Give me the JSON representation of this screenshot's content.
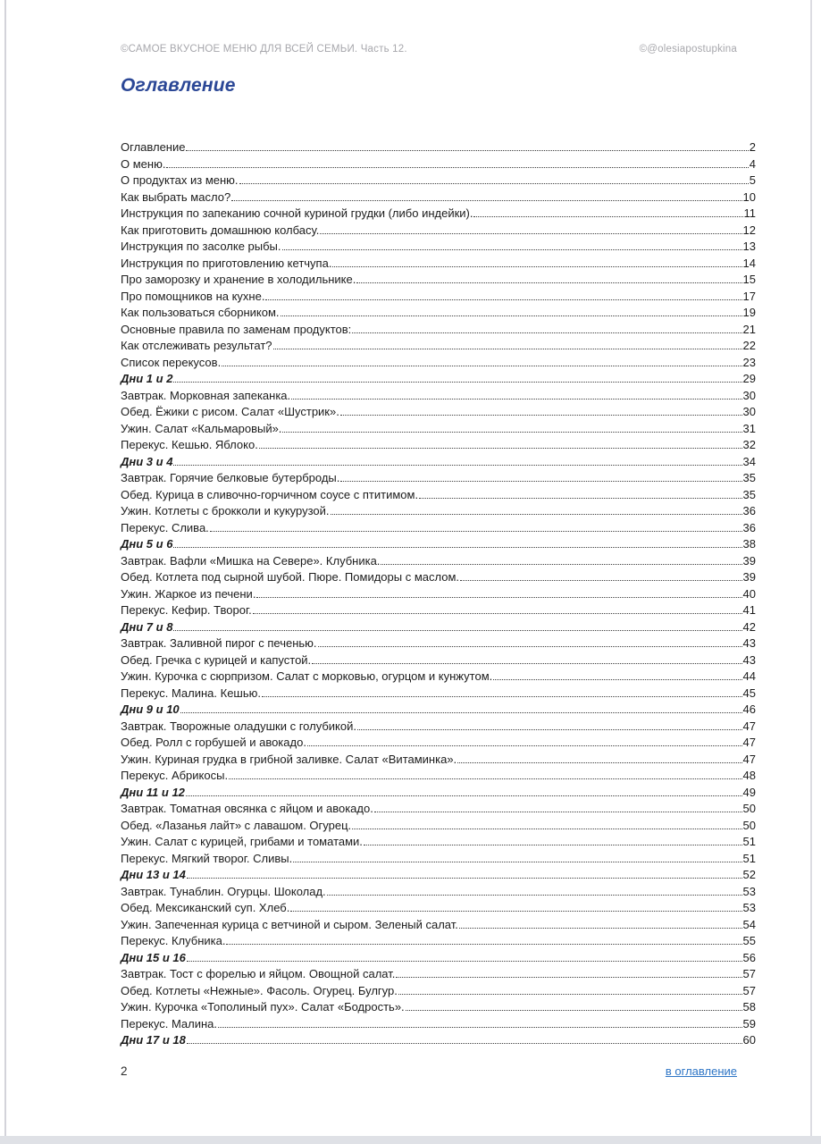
{
  "header": {
    "left": "©САМОЕ ВКУСНОЕ МЕНЮ ДЛЯ ВСЕЙ СЕМЬИ. Часть 12.",
    "right": "©@olesiapostupkina"
  },
  "title": "Оглавление",
  "colors": {
    "title_blue": "#2b4796",
    "link_blue": "#2e75c6",
    "header_gray": "#a7a7ac",
    "body_text": "#1c1c1c"
  },
  "toc": {
    "entries": [
      {
        "label": "Оглавление",
        "page": "2",
        "emphasis": false
      },
      {
        "label": "О меню.",
        "page": "4",
        "emphasis": false
      },
      {
        "label": "О продуктах из меню.",
        "page": "5",
        "emphasis": false
      },
      {
        "label": "Как выбрать масло?",
        "page": "10",
        "emphasis": false
      },
      {
        "label": "Инструкция по запеканию сочной куриной грудки (либо индейки).",
        "page": "11",
        "emphasis": false
      },
      {
        "label": "Как приготовить домашнюю колбасу.",
        "page": "12",
        "emphasis": false
      },
      {
        "label": "Инструкция по засолке рыбы.",
        "page": "13",
        "emphasis": false
      },
      {
        "label": "Инструкция по приготовлению кетчупа.",
        "page": "14",
        "emphasis": false
      },
      {
        "label": "Про заморозку и хранение в холодильнике.",
        "page": "15",
        "emphasis": false
      },
      {
        "label": "Про помощников на кухне.",
        "page": "17",
        "emphasis": false
      },
      {
        "label": "Как пользоваться сборником.",
        "page": "19",
        "emphasis": false
      },
      {
        "label": "Основные правила по заменам продуктов:",
        "page": "21",
        "emphasis": false
      },
      {
        "label": "Как отслеживать результат?",
        "page": "22",
        "emphasis": false
      },
      {
        "label": "Список перекусов.",
        "page": "23",
        "emphasis": false
      },
      {
        "label": "Дни 1 и 2",
        "page": "29",
        "emphasis": true
      },
      {
        "label": "Завтрак. Морковная запеканка.",
        "page": "30",
        "emphasis": false
      },
      {
        "label": "Обед. Ёжики с рисом. Салат «Шустрик».",
        "page": "30",
        "emphasis": false
      },
      {
        "label": "Ужин. Салат «Кальмаровый».",
        "page": "31",
        "emphasis": false
      },
      {
        "label": "Перекус. Кешью. Яблоко.",
        "page": "32",
        "emphasis": false
      },
      {
        "label": "Дни 3 и 4",
        "page": "34",
        "emphasis": true
      },
      {
        "label": "Завтрак. Горячие белковые бутерброды.",
        "page": "35",
        "emphasis": false
      },
      {
        "label": "Обед. Курица в сливочно-горчичном соусе с птитимом.",
        "page": "35",
        "emphasis": false
      },
      {
        "label": "Ужин. Котлеты с брокколи и кукурузой.",
        "page": "36",
        "emphasis": false
      },
      {
        "label": "Перекус. Слива.",
        "page": "36",
        "emphasis": false
      },
      {
        "label": "Дни 5 и 6",
        "page": "38",
        "emphasis": true
      },
      {
        "label": "Завтрак. Вафли «Мишка на Севере». Клубника.",
        "page": "39",
        "emphasis": false
      },
      {
        "label": "Обед. Котлета под сырной шубой. Пюре. Помидоры с маслом.",
        "page": "39",
        "emphasis": false
      },
      {
        "label": "Ужин. Жаркое из печени.",
        "page": "40",
        "emphasis": false
      },
      {
        "label": "Перекус. Кефир. Творог.",
        "page": "41",
        "emphasis": false
      },
      {
        "label": "Дни 7 и 8",
        "page": "42",
        "emphasis": true
      },
      {
        "label": "Завтрак. Заливной пирог с печенью.",
        "page": "43",
        "emphasis": false
      },
      {
        "label": "Обед. Гречка с курицей и капустой.",
        "page": "43",
        "emphasis": false
      },
      {
        "label": "Ужин. Курочка с сюрпризом. Салат с морковью, огурцом и кунжутом.",
        "page": "44",
        "emphasis": false
      },
      {
        "label": "Перекус. Малина. Кешью.",
        "page": "45",
        "emphasis": false
      },
      {
        "label": "Дни 9 и 10",
        "page": "46",
        "emphasis": true
      },
      {
        "label": "Завтрак. Творожные оладушки с голубикой.",
        "page": "47",
        "emphasis": false
      },
      {
        "label": "Обед. Ролл с горбушей и авокадо.",
        "page": "47",
        "emphasis": false
      },
      {
        "label": "Ужин. Куриная грудка в грибной заливке. Салат «Витаминка».",
        "page": "47",
        "emphasis": false
      },
      {
        "label": "Перекус. Абрикосы.",
        "page": "48",
        "emphasis": false
      },
      {
        "label": "Дни 11 и 12",
        "page": "49",
        "emphasis": true
      },
      {
        "label": "Завтрак. Томатная овсянка с яйцом и авокадо.",
        "page": "50",
        "emphasis": false
      },
      {
        "label": "Обед. «Лазанья лайт» с лавашом. Огурец.",
        "page": "50",
        "emphasis": false
      },
      {
        "label": "Ужин. Салат с курицей, грибами и томатами.",
        "page": "51",
        "emphasis": false
      },
      {
        "label": "Перекус. Мягкий творог. Сливы.",
        "page": "51",
        "emphasis": false
      },
      {
        "label": "Дни 13 и 14",
        "page": "52",
        "emphasis": true
      },
      {
        "label": "Завтрак. Тунаблин. Огурцы. Шоколад.",
        "page": "53",
        "emphasis": false
      },
      {
        "label": "Обед. Мексиканский суп. Хлеб.",
        "page": "53",
        "emphasis": false
      },
      {
        "label": "Ужин. Запеченная курица с ветчиной и сыром. Зеленый салат.",
        "page": "54",
        "emphasis": false
      },
      {
        "label": "Перекус. Клубника.",
        "page": "55",
        "emphasis": false
      },
      {
        "label": "Дни 15 и 16",
        "page": "56",
        "emphasis": true
      },
      {
        "label": "Завтрак. Тост с форелью и яйцом. Овощной салат.",
        "page": "57",
        "emphasis": false
      },
      {
        "label": "Обед. Котлеты «Нежные». Фасоль. Огурец. Булгур.",
        "page": "57",
        "emphasis": false
      },
      {
        "label": "Ужин. Курочка «Тополиный пух». Салат «Бодрость».",
        "page": "58",
        "emphasis": false
      },
      {
        "label": "Перекус. Малина.",
        "page": "59",
        "emphasis": false
      },
      {
        "label": "Дни 17 и 18",
        "page": "60",
        "emphasis": true
      }
    ]
  },
  "footer": {
    "page_number": "2",
    "back_link": "в оглавление"
  }
}
